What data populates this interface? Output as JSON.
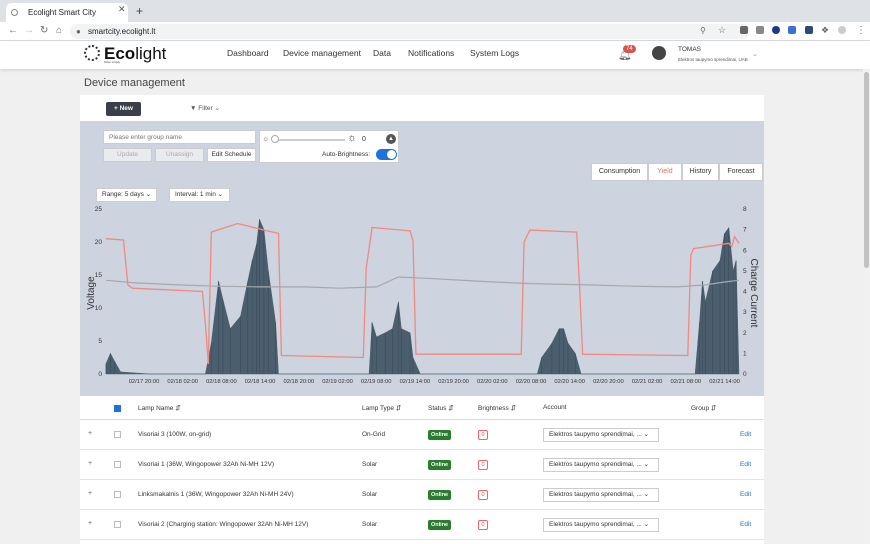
{
  "browser": {
    "tab_title": "Ecolight Smart City",
    "new_tab": "+",
    "close": "✕",
    "url": "smartcity.ecolight.lt"
  },
  "header": {
    "logo_bold": "Eco",
    "logo_rest": "light",
    "logo_tagline": "Save simply",
    "menu": [
      "Dashboard",
      "Device management",
      "Data",
      "Notifications",
      "System Logs"
    ],
    "notif_count": "74",
    "user_name": "TOMAS",
    "user_org": "Elektros taupymo sprendimai, UAB"
  },
  "page": {
    "title": "Device management",
    "new_button": "+ New",
    "filter": "Filter"
  },
  "controls": {
    "group_placeholder": "Please enter group name",
    "update": "Update",
    "unassign": "Unassign",
    "edit_schedule": "Edit Schedule",
    "brightness_value": "0",
    "auto_brightness": "Auto-Brightness:",
    "auto_brightness_on": true
  },
  "chart_tabs": [
    {
      "label": "Consumption",
      "active": false
    },
    {
      "label": "Yield",
      "active": true
    },
    {
      "label": "History",
      "active": false
    },
    {
      "label": "Forecast",
      "active": false
    }
  ],
  "range_select": "Range: 5 days",
  "interval_select": "Interval: 1 min",
  "chart_data": {
    "type": "area",
    "ylabel": "Voltage",
    "y2label": "Charge Current",
    "ylim": [
      0,
      25
    ],
    "y2lim": [
      0,
      8
    ],
    "yticks": [
      "0",
      "5",
      "10",
      "15",
      "20",
      "25"
    ],
    "y2ticks": [
      "0",
      "1",
      "2",
      "3",
      "4",
      "5",
      "6",
      "7",
      "8"
    ],
    "xticks": [
      "02/17 20:00",
      "02/18 02:00",
      "02/18 08:00",
      "02/18 14:00",
      "02/18 20:00",
      "02/19 02:00",
      "02/19 08:00",
      "02/19 14:00",
      "02/19 20:00",
      "02/20 02:00",
      "02/20 08:00",
      "02/20 14:00",
      "02/20 20:00",
      "02/21 02:00",
      "02/21 08:00",
      "02/21 14:00"
    ],
    "colors": {
      "charge_current": "#4b5e6e",
      "voltage_red": "#f08a7e",
      "voltage_gray": "#a5a8ad"
    },
    "series": [
      {
        "name": "Charge Current",
        "axis": "right",
        "points": [
          [
            0.0,
            0.5
          ],
          [
            0.3,
            1
          ],
          [
            0.6,
            0.6
          ],
          [
            1.0,
            0.1
          ],
          [
            3.0,
            0
          ],
          [
            6.8,
            0
          ],
          [
            7.2,
            1.5
          ],
          [
            7.7,
            4.5
          ],
          [
            8.0,
            3.6
          ],
          [
            8.5,
            2.2
          ],
          [
            9.2,
            2.8
          ],
          [
            9.7,
            4.5
          ],
          [
            10.0,
            5.5
          ],
          [
            10.3,
            6.3
          ],
          [
            10.5,
            7.5
          ],
          [
            10.8,
            7.0
          ],
          [
            11.1,
            5.0
          ],
          [
            11.6,
            2.5
          ],
          [
            11.8,
            0
          ],
          [
            18.0,
            0
          ],
          [
            18.2,
            2.5
          ],
          [
            18.5,
            1.8
          ],
          [
            19.1,
            2.0
          ],
          [
            19.6,
            2.2
          ],
          [
            20.0,
            3.5
          ],
          [
            20.2,
            2.2
          ],
          [
            20.8,
            2.0
          ],
          [
            21.0,
            0.8
          ],
          [
            21.5,
            0
          ],
          [
            29.5,
            0
          ],
          [
            29.8,
            0.8
          ],
          [
            30.5,
            1.5
          ],
          [
            31.0,
            2.2
          ],
          [
            31.3,
            2.2
          ],
          [
            31.6,
            1.5
          ],
          [
            32.1,
            1.0
          ],
          [
            32.5,
            0
          ],
          [
            40.3,
            0
          ],
          [
            40.6,
            2.5
          ],
          [
            40.8,
            4.5
          ],
          [
            41.0,
            3.5
          ],
          [
            41.5,
            5.0
          ],
          [
            42.0,
            5.5
          ],
          [
            42.3,
            6.8
          ],
          [
            42.6,
            7.1
          ],
          [
            42.9,
            5.0
          ],
          [
            43.1,
            5.5
          ],
          [
            43.3,
            0
          ]
        ]
      },
      {
        "name": "Voltage",
        "axis": "left",
        "points": [
          [
            0.0,
            20.5
          ],
          [
            1.2,
            20.3
          ],
          [
            1.5,
            13.5
          ],
          [
            1.8,
            13.0
          ],
          [
            6.6,
            12.5
          ],
          [
            6.8,
            7.5
          ],
          [
            7.0,
            1.5
          ],
          [
            7.2,
            21.5
          ],
          [
            9.0,
            22.8
          ],
          [
            11.0,
            21.7
          ],
          [
            11.8,
            21.3
          ],
          [
            12.0,
            2.8
          ],
          [
            17.6,
            2.5
          ],
          [
            17.8,
            16.0
          ],
          [
            18.2,
            22.2
          ],
          [
            20.8,
            21.7
          ],
          [
            21.0,
            20.2
          ],
          [
            21.2,
            3.0
          ],
          [
            28.4,
            3.0
          ],
          [
            28.6,
            20.0
          ],
          [
            29.0,
            21.8
          ],
          [
            32.2,
            21.5
          ],
          [
            32.4,
            13.0
          ],
          [
            32.6,
            3.0
          ],
          [
            39.8,
            2.8
          ],
          [
            40.0,
            18.0
          ],
          [
            40.2,
            19.0
          ],
          [
            42.6,
            19.8
          ],
          [
            42.8,
            19.3
          ],
          [
            43.0,
            20.8
          ],
          [
            43.3,
            19.8
          ]
        ]
      },
      {
        "name": "Voltage (gray)",
        "axis": "left",
        "points": [
          [
            0.0,
            14.2
          ],
          [
            2.0,
            13.8
          ],
          [
            5.0,
            13.5
          ],
          [
            7.5,
            13.3
          ],
          [
            10.5,
            13.2
          ],
          [
            13.5,
            13.2
          ],
          [
            16.0,
            13.0
          ],
          [
            18.5,
            13.2
          ],
          [
            20.0,
            14.7
          ],
          [
            22.0,
            14.5
          ],
          [
            26.0,
            14.0
          ],
          [
            29.0,
            13.7
          ],
          [
            33.0,
            13.5
          ],
          [
            36.0,
            13.3
          ],
          [
            39.0,
            13.2
          ],
          [
            41.0,
            13.5
          ],
          [
            42.5,
            14.0
          ],
          [
            43.3,
            14.2
          ]
        ]
      }
    ]
  },
  "table": {
    "headers": [
      "Lamp Name",
      "Lamp Type",
      "Status",
      "Brightness",
      "Account",
      "Group"
    ],
    "rows": [
      {
        "name": "Visoriai 3 (100W, on-grid)",
        "type": "On-Grid",
        "status": "Online",
        "brightness": "0",
        "account": "Elektros taupymo sprendimai, ...",
        "edit": "Edit"
      },
      {
        "name": "Visoriai 1 (36W, Wingopower 32Ah Ni-MH 12V)",
        "type": "Solar",
        "status": "Online",
        "brightness": "0",
        "account": "Elektros taupymo sprendimai, ...",
        "edit": "Edit"
      },
      {
        "name": "Linksmakalnis 1 (36W, Wingopower 32Ah Ni-MH 24V)",
        "type": "Solar",
        "status": "Online",
        "brightness": "0",
        "account": "Elektros taupymo sprendimai, ...",
        "edit": "Edit"
      },
      {
        "name": "Visoriai 2 (Charging station: Wingopower 32Ah Ni-MH 12V)",
        "type": "Solar",
        "status": "Online",
        "brightness": "0",
        "account": "Elektros taupymo sprendimai, ...",
        "edit": "Edit"
      }
    ]
  }
}
